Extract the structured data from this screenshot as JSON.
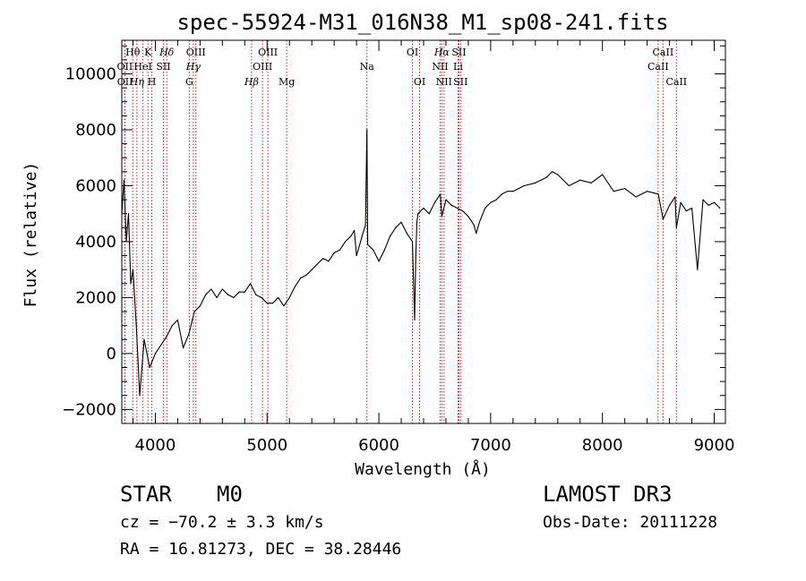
{
  "chart_data": {
    "type": "line",
    "title": "spec-55924-M31_016N38_M1_sp08-241.fits",
    "xlabel": "Wavelength (Å)",
    "ylabel": "Flux (relative)",
    "xlim": [
      3700,
      9100
    ],
    "ylim": [
      -2500,
      11200
    ],
    "xticks": [
      4000,
      5000,
      6000,
      7000,
      8000,
      9000
    ],
    "yticks": [
      -2000,
      0,
      2000,
      4000,
      6000,
      8000,
      10000
    ],
    "grid": false,
    "series": [
      {
        "name": "flux",
        "color": "#000000",
        "x": [
          3700,
          3720,
          3740,
          3760,
          3780,
          3800,
          3830,
          3860,
          3900,
          3950,
          4000,
          4050,
          4100,
          4150,
          4200,
          4250,
          4300,
          4350,
          4400,
          4450,
          4500,
          4550,
          4600,
          4650,
          4700,
          4750,
          4800,
          4850,
          4900,
          4950,
          5000,
          5050,
          5100,
          5150,
          5200,
          5250,
          5300,
          5350,
          5400,
          5450,
          5500,
          5550,
          5600,
          5650,
          5700,
          5750,
          5780,
          5800,
          5850,
          5880,
          5893,
          5900,
          5950,
          6000,
          6050,
          6100,
          6150,
          6200,
          6250,
          6300,
          6320,
          6330,
          6340,
          6350,
          6400,
          6450,
          6500,
          6550,
          6563,
          6600,
          6650,
          6700,
          6750,
          6800,
          6850,
          6870,
          6900,
          6950,
          7000,
          7050,
          7100,
          7150,
          7200,
          7250,
          7300,
          7400,
          7500,
          7550,
          7600,
          7700,
          7800,
          7900,
          8000,
          8100,
          8200,
          8300,
          8400,
          8500,
          8542,
          8600,
          8650,
          8662,
          8700,
          8750,
          8800,
          8850,
          8900,
          8950,
          9000,
          9050
        ],
        "y": [
          5000,
          6200,
          4000,
          5000,
          2500,
          3000,
          1000,
          -1500,
          500,
          -500,
          0,
          300,
          600,
          1000,
          1200,
          200,
          700,
          1500,
          1700,
          2100,
          2300,
          2000,
          2300,
          2100,
          2000,
          2200,
          2200,
          2500,
          2100,
          2000,
          1800,
          1800,
          2000,
          1700,
          2000,
          2400,
          2700,
          2800,
          3000,
          3200,
          3400,
          3300,
          3600,
          3700,
          4000,
          4200,
          4400,
          3500,
          4200,
          4600,
          8000,
          3900,
          3700,
          3300,
          3700,
          4200,
          4500,
          4700,
          4300,
          4000,
          1200,
          3500,
          4700,
          5000,
          5200,
          5000,
          5400,
          5700,
          4900,
          5500,
          5300,
          5200,
          5100,
          4900,
          4600,
          4300,
          4700,
          5200,
          5400,
          5500,
          5700,
          5800,
          5800,
          5900,
          6000,
          6100,
          6300,
          6500,
          6400,
          6000,
          6200,
          6100,
          6400,
          5800,
          5900,
          5600,
          5800,
          5700,
          4800,
          5300,
          5600,
          4500,
          5400,
          5100,
          5200,
          3000,
          5500,
          5300,
          5400,
          5200
        ]
      }
    ],
    "lines": [
      {
        "label": "Hθ",
        "x": 3798,
        "row": 1,
        "style": "roman"
      },
      {
        "label": "OII",
        "x": 3727,
        "row": 2,
        "style": "roman"
      },
      {
        "label": "OII",
        "x": 3729,
        "row": 3,
        "style": "roman"
      },
      {
        "label": "Hη",
        "x": 3835,
        "row": 3,
        "style": "italic"
      },
      {
        "label": "HeI",
        "x": 3889,
        "row": 2,
        "style": "roman"
      },
      {
        "label": "K",
        "x": 3934,
        "row": 1,
        "style": "roman"
      },
      {
        "label": "H",
        "x": 3969,
        "row": 3,
        "style": "roman"
      },
      {
        "label": "SII",
        "x": 4072,
        "row": 2,
        "style": "roman"
      },
      {
        "label": "Hδ",
        "x": 4102,
        "row": 1,
        "style": "italic"
      },
      {
        "label": "G",
        "x": 4304,
        "row": 3,
        "style": "roman"
      },
      {
        "label": "Hγ",
        "x": 4340,
        "row": 2,
        "style": "italic"
      },
      {
        "label": "OIII",
        "x": 4363,
        "row": 1,
        "style": "roman"
      },
      {
        "label": "Hβ",
        "x": 4861,
        "row": 3,
        "style": "italic"
      },
      {
        "label": "OIII",
        "x": 4959,
        "row": 2,
        "style": "roman"
      },
      {
        "label": "OIII",
        "x": 5007,
        "row": 1,
        "style": "roman"
      },
      {
        "label": "Mg",
        "x": 5175,
        "row": 3,
        "style": "roman"
      },
      {
        "label": "Na",
        "x": 5893,
        "row": 2,
        "style": "roman"
      },
      {
        "label": "OI",
        "x": 6300,
        "row": 1,
        "style": "roman"
      },
      {
        "label": "OI",
        "x": 6364,
        "row": 3,
        "style": "roman"
      },
      {
        "label": "NII",
        "x": 6548,
        "row": 2,
        "style": "roman"
      },
      {
        "label": "Hα",
        "x": 6563,
        "row": 1,
        "style": "italic"
      },
      {
        "label": "NII",
        "x": 6583,
        "row": 3,
        "style": "roman"
      },
      {
        "label": "Li",
        "x": 6708,
        "row": 2,
        "style": "roman"
      },
      {
        "label": "SII",
        "x": 6716,
        "row": 1,
        "style": "roman"
      },
      {
        "label": "SII",
        "x": 6731,
        "row": 3,
        "style": "roman"
      },
      {
        "label": "CaII",
        "x": 8498,
        "row": 2,
        "style": "roman"
      },
      {
        "label": "CaII",
        "x": 8542,
        "row": 1,
        "style": "roman"
      },
      {
        "label": "CaII",
        "x": 8662,
        "row": 3,
        "style": "roman"
      }
    ],
    "line_color": "#cc2222"
  },
  "info": {
    "class_label": "STAR",
    "subclass": "M0",
    "survey": "LAMOST DR3",
    "redshift": "cz = −70.2 ± 3.3 km/s",
    "obs_date": "Obs-Date: 20111228",
    "coords": "RA =  16.81273, DEC =  38.28446"
  }
}
